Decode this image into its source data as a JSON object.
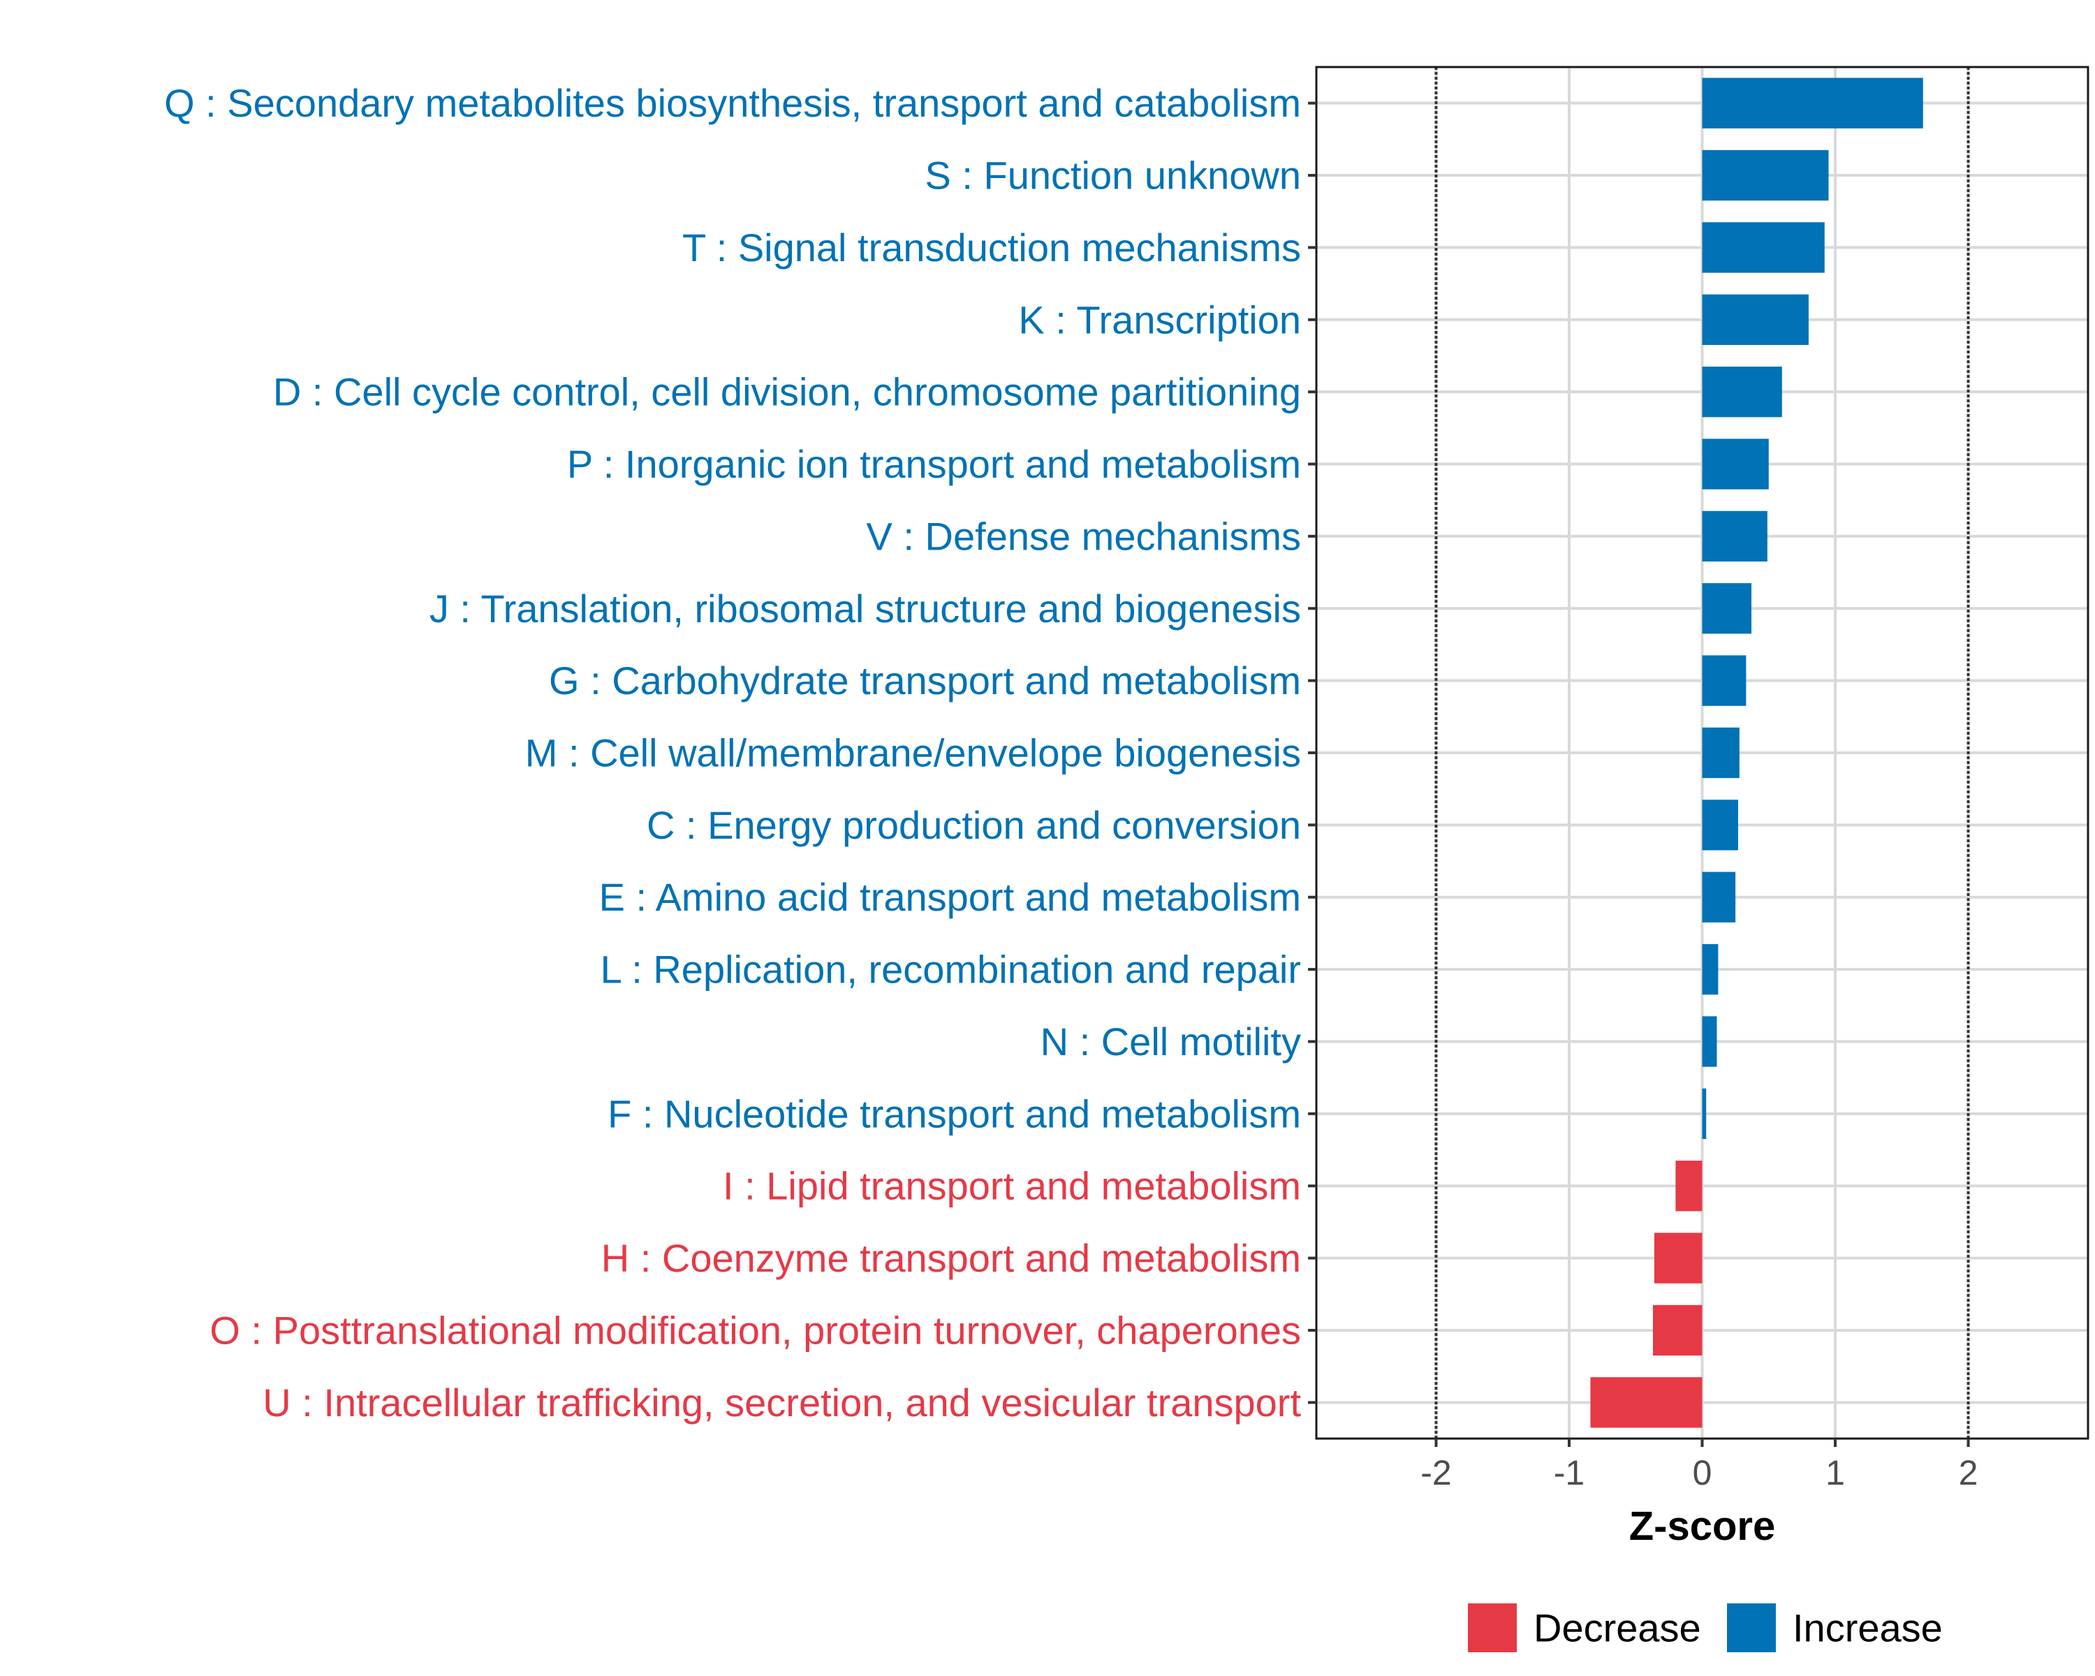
{
  "chart_data": {
    "type": "bar",
    "orientation": "horizontal",
    "title": "",
    "xlabel": "Z-score",
    "ylabel": "",
    "xlim": [
      -2.9,
      2.9
    ],
    "x_ticks": [
      -2,
      -1,
      0,
      1,
      2
    ],
    "x_tick_labels": [
      "-2",
      "-1",
      "0",
      "1",
      "2"
    ],
    "reference_lines": [
      -2,
      2
    ],
    "grid": true,
    "legend_position": "bottom",
    "colors": {
      "increase": "#0072B5",
      "decrease": "#E63946"
    },
    "legend": [
      {
        "key": "decrease",
        "label": "Decrease"
      },
      {
        "key": "increase",
        "label": "Increase"
      }
    ],
    "categories": [
      {
        "label": "Q : Secondary metabolites biosynthesis, transport and catabolism",
        "value": 1.66,
        "group": "increase"
      },
      {
        "label": "S : Function unknown",
        "value": 0.95,
        "group": "increase"
      },
      {
        "label": "T : Signal transduction mechanisms",
        "value": 0.92,
        "group": "increase"
      },
      {
        "label": "K : Transcription",
        "value": 0.8,
        "group": "increase"
      },
      {
        "label": "D : Cell cycle control, cell division, chromosome partitioning",
        "value": 0.6,
        "group": "increase"
      },
      {
        "label": "P : Inorganic ion transport and metabolism",
        "value": 0.5,
        "group": "increase"
      },
      {
        "label": "V : Defense mechanisms",
        "value": 0.49,
        "group": "increase"
      },
      {
        "label": "J : Translation, ribosomal structure and biogenesis",
        "value": 0.37,
        "group": "increase"
      },
      {
        "label": "G : Carbohydrate transport and metabolism",
        "value": 0.33,
        "group": "increase"
      },
      {
        "label": "M : Cell wall/membrane/envelope biogenesis",
        "value": 0.28,
        "group": "increase"
      },
      {
        "label": "C : Energy production and conversion",
        "value": 0.27,
        "group": "increase"
      },
      {
        "label": "E : Amino acid transport and metabolism",
        "value": 0.25,
        "group": "increase"
      },
      {
        "label": "L : Replication, recombination and repair",
        "value": 0.12,
        "group": "increase"
      },
      {
        "label": "N : Cell motility",
        "value": 0.11,
        "group": "increase"
      },
      {
        "label": "F : Nucleotide transport and metabolism",
        "value": 0.03,
        "group": "increase"
      },
      {
        "label": "I : Lipid transport and metabolism",
        "value": -0.2,
        "group": "decrease"
      },
      {
        "label": "H : Coenzyme transport and metabolism",
        "value": -0.36,
        "group": "decrease"
      },
      {
        "label": "O : Posttranslational modification, protein turnover, chaperones",
        "value": -0.37,
        "group": "decrease"
      },
      {
        "label": "U : Intracellular trafficking, secretion, and vesicular transport",
        "value": -0.84,
        "group": "decrease"
      }
    ]
  }
}
